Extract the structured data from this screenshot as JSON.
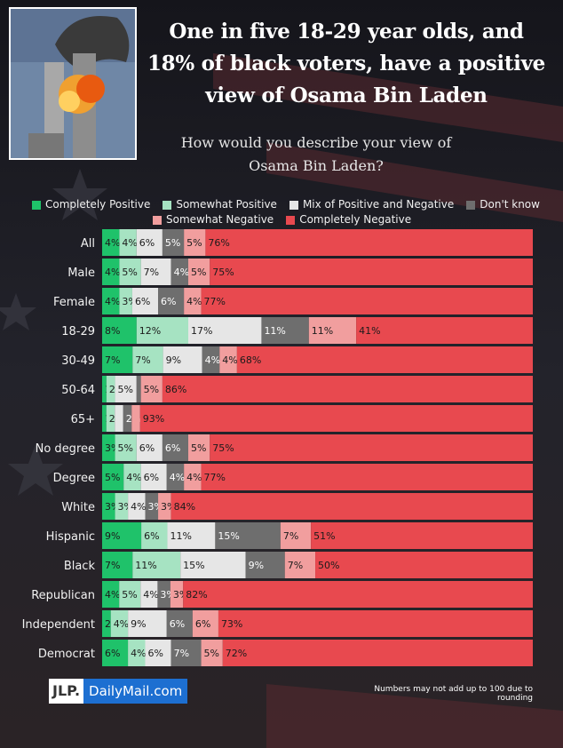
{
  "headline": "One in five 18-29 year olds, and 18% of black voters, have a positive view of Osama Bin Laden",
  "footnote": "Numbers may not add up to 100 due to rounding",
  "logo": {
    "left": "JLP.",
    "right": "DailyMail.com"
  },
  "colors": {
    "Completely Positive": "#1fc26a",
    "Somewhat Positive": "#a6e3c2",
    "Mix of Positive and Negative": "#e6e6e6",
    "Don't know": "#6e6e6e",
    "Somewhat Negative": "#f19e9e",
    "Completely Negative": "#e8494f"
  },
  "chart_data": {
    "type": "bar",
    "orientation": "horizontal",
    "stacked": true,
    "title": "How would you describe your view of Osama Bin Laden?",
    "categories": [
      "All",
      "Male",
      "Female",
      "18-29",
      "30-49",
      "50-64",
      "65+",
      "No degree",
      "Degree",
      "White",
      "Hispanic",
      "Black",
      "Republican",
      "Independent",
      "Democrat"
    ],
    "series": [
      {
        "name": "Completely Positive",
        "values": [
          4,
          4,
          4,
          8,
          7,
          1,
          1,
          3,
          5,
          3,
          9,
          7,
          4,
          2,
          6
        ]
      },
      {
        "name": "Somewhat Positive",
        "values": [
          4,
          5,
          3,
          12,
          7,
          2,
          2,
          5,
          4,
          3,
          6,
          11,
          5,
          4,
          4
        ]
      },
      {
        "name": "Mix of Positive and Negative",
        "values": [
          6,
          7,
          6,
          17,
          9,
          5,
          2,
          6,
          6,
          4,
          11,
          15,
          4,
          9,
          6
        ]
      },
      {
        "name": "Don't know",
        "values": [
          5,
          4,
          6,
          11,
          4,
          1,
          2,
          6,
          4,
          3,
          15,
          9,
          3,
          6,
          7
        ]
      },
      {
        "name": "Somewhat Negative",
        "values": [
          5,
          5,
          4,
          11,
          4,
          5,
          2,
          5,
          4,
          3,
          7,
          7,
          3,
          6,
          5
        ]
      },
      {
        "name": "Completely Negative",
        "values": [
          76,
          75,
          77,
          41,
          68,
          86,
          93,
          75,
          77,
          84,
          51,
          50,
          82,
          73,
          72
        ]
      }
    ],
    "value_labels": [
      [
        "4%",
        "4%",
        "6%",
        "5%",
        "5%",
        "76%"
      ],
      [
        "4%",
        "5%",
        "7%",
        "4%",
        "5%",
        "75%"
      ],
      [
        "4%",
        "3%",
        "6%",
        "6%",
        "4%",
        "77%"
      ],
      [
        "8%",
        "12%",
        "17%",
        "11%",
        "11%",
        "41%"
      ],
      [
        "7%",
        "7%",
        "9%",
        "4%",
        "4%",
        "68%"
      ],
      [
        "1%",
        "2%",
        "5%",
        "",
        "5%",
        "86%"
      ],
      [
        "1%",
        "2%",
        "",
        "2%",
        "",
        "93%"
      ],
      [
        "3%",
        "5%",
        "6%",
        "6%",
        "5%",
        "75%"
      ],
      [
        "5%",
        "4%",
        "6%",
        "4%",
        "4%",
        "77%"
      ],
      [
        "3%",
        "3%",
        "4%",
        "3%",
        "3%",
        "84%"
      ],
      [
        "9%",
        "6%",
        "11%",
        "15%",
        "7%",
        "51%"
      ],
      [
        "7%",
        "11%",
        "15%",
        "9%",
        "7%",
        "50%"
      ],
      [
        "4%",
        "5%",
        "4%",
        "3%",
        "3%",
        "82%"
      ],
      [
        "2%",
        "4%",
        "9%",
        "6%",
        "6%",
        "73%"
      ],
      [
        "6%",
        "4%",
        "6%",
        "7%",
        "5%",
        "72%"
      ]
    ],
    "xlim": [
      0,
      100
    ],
    "legend_position": "top"
  }
}
